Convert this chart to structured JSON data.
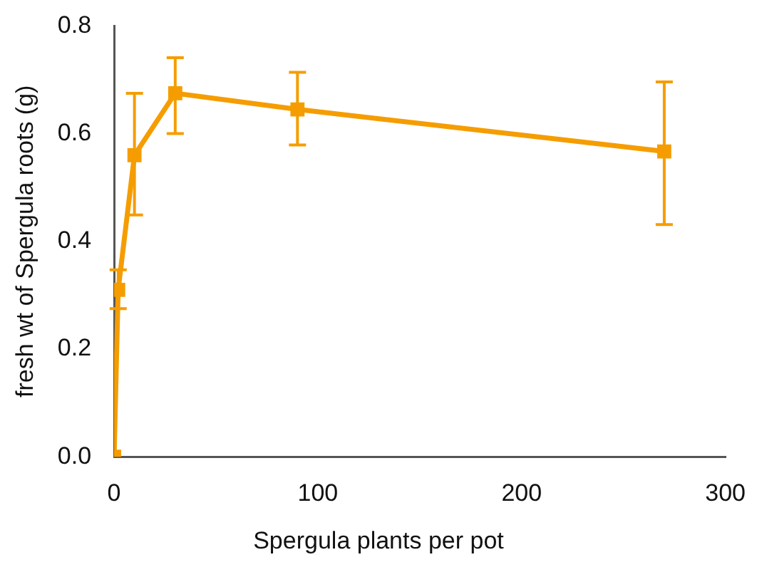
{
  "chart_data": {
    "type": "line",
    "xlabel": "Spergula plants per pot",
    "ylabel": "fresh wt of Spergula roots (g)",
    "x": [
      0,
      2,
      10,
      30,
      90,
      270
    ],
    "series": [
      {
        "color": "#f59d00",
        "values": [
          0.0,
          0.31,
          0.56,
          0.675,
          0.645,
          0.567
        ],
        "errors": [
          null,
          [
            0.275,
            0.347
          ],
          [
            0.449,
            0.675
          ],
          [
            0.6,
            0.741
          ],
          [
            0.579,
            0.714
          ],
          [
            0.431,
            0.696
          ]
        ]
      }
    ],
    "xlim": [
      0,
      300
    ],
    "xticks": [
      0,
      100,
      200,
      300
    ],
    "ylim": [
      0,
      0.8
    ],
    "yticks": [
      {
        "value": 0,
        "label": "0.0"
      },
      {
        "value": 0.2,
        "label": "0.2"
      },
      {
        "value": 0.4,
        "label": "0.4"
      },
      {
        "value": 0.6,
        "label": "0.6"
      },
      {
        "value": 0.8,
        "label": "0.8"
      }
    ],
    "grid": false,
    "legend": false,
    "marker": "square",
    "line_style": "solid"
  }
}
